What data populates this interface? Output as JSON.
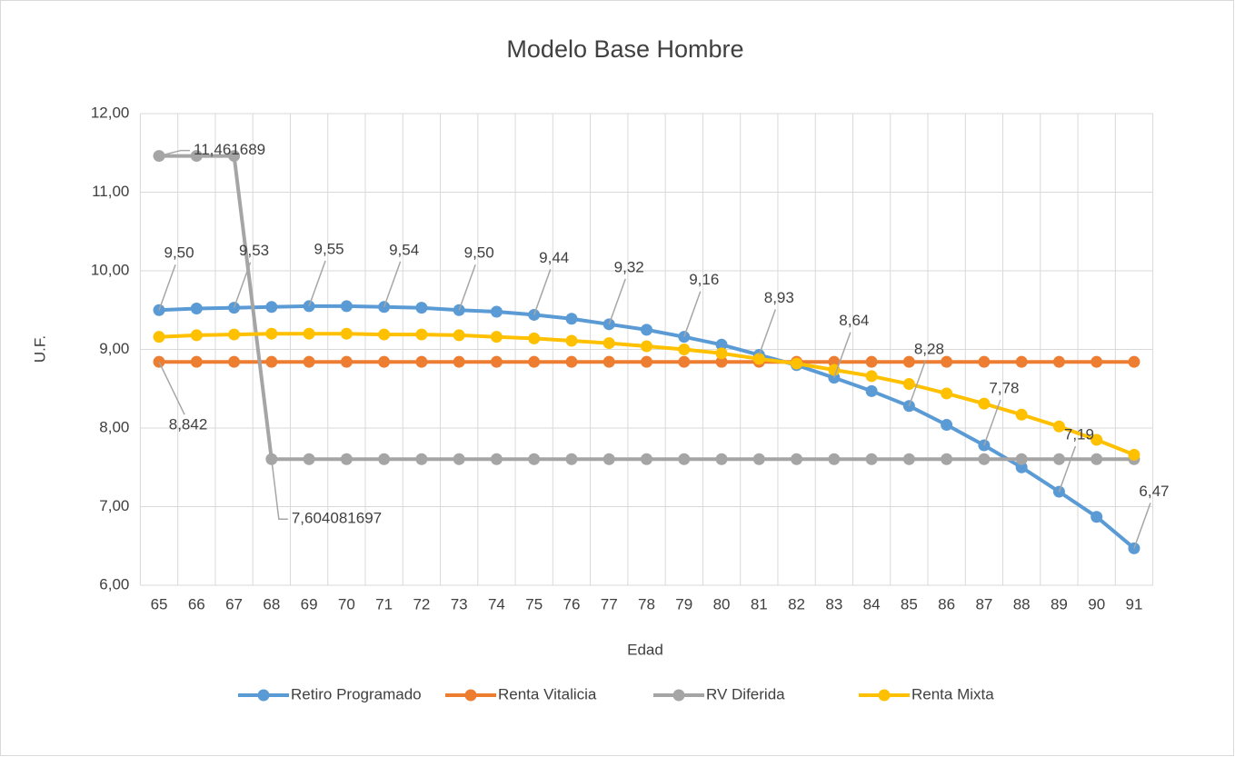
{
  "chart_data": {
    "type": "line",
    "title": "Modelo Base Hombre",
    "x_label": "Edad",
    "y_label": "U.F.",
    "categories": [
      "65",
      "66",
      "67",
      "68",
      "69",
      "70",
      "71",
      "72",
      "73",
      "74",
      "75",
      "76",
      "77",
      "78",
      "79",
      "80",
      "81",
      "82",
      "83",
      "84",
      "85",
      "86",
      "87",
      "88",
      "89",
      "90",
      "91"
    ],
    "ylim": [
      6,
      12
    ],
    "yticks": [
      {
        "value": 6,
        "label": "6,00"
      },
      {
        "value": 7,
        "label": "7,00"
      },
      {
        "value": 8,
        "label": "8,00"
      },
      {
        "value": 9,
        "label": "9,00"
      },
      {
        "value": 10,
        "label": "10,00"
      },
      {
        "value": 11,
        "label": "11,00"
      },
      {
        "value": 12,
        "label": "12,00"
      }
    ],
    "grid": true,
    "legend": "bottom",
    "series": [
      {
        "name": "Retiro Programado",
        "color": "#5b9bd5",
        "values": [
          9.5,
          9.52,
          9.53,
          9.54,
          9.55,
          9.55,
          9.54,
          9.53,
          9.5,
          9.48,
          9.44,
          9.39,
          9.32,
          9.25,
          9.16,
          9.06,
          8.93,
          8.8,
          8.64,
          8.47,
          8.28,
          8.04,
          7.78,
          7.5,
          7.19,
          6.87,
          6.47
        ],
        "value_labels": [
          "9,50",
          null,
          "9,53",
          null,
          "9,55",
          null,
          "9,54",
          null,
          "9,50",
          null,
          "9,44",
          null,
          "9,32",
          null,
          "9,16",
          null,
          "8,93",
          null,
          "8,64",
          null,
          "8,28",
          null,
          "7,78",
          null,
          "7,19",
          null,
          "6,47"
        ]
      },
      {
        "name": "Renta Vitalicia",
        "color": "#ed7d31",
        "values": [
          8.842,
          8.842,
          8.842,
          8.842,
          8.842,
          8.842,
          8.842,
          8.842,
          8.842,
          8.842,
          8.842,
          8.842,
          8.842,
          8.842,
          8.842,
          8.842,
          8.842,
          8.842,
          8.842,
          8.842,
          8.842,
          8.842,
          8.842,
          8.842,
          8.842,
          8.842,
          8.842
        ],
        "value_labels": [
          "8,842",
          null,
          null,
          null,
          null,
          null,
          null,
          null,
          null,
          null,
          null,
          null,
          null,
          null,
          null,
          null,
          null,
          null,
          null,
          null,
          null,
          null,
          null,
          null,
          null,
          null,
          null
        ]
      },
      {
        "name": "RV Diferida",
        "color": "#a5a5a5",
        "values": [
          11.461689,
          11.461689,
          11.461689,
          7.604081697,
          7.604081697,
          7.604081697,
          7.604081697,
          7.604081697,
          7.604081697,
          7.604081697,
          7.604081697,
          7.604081697,
          7.604081697,
          7.604081697,
          7.604081697,
          7.604081697,
          7.604081697,
          7.604081697,
          7.604081697,
          7.604081697,
          7.604081697,
          7.604081697,
          7.604081697,
          7.604081697,
          7.604081697,
          7.604081697,
          7.604081697
        ],
        "value_labels": [
          "11,461689",
          null,
          null,
          "7,604081697",
          null,
          null,
          null,
          null,
          null,
          null,
          null,
          null,
          null,
          null,
          null,
          null,
          null,
          null,
          null,
          null,
          null,
          null,
          null,
          null,
          null,
          null,
          null
        ]
      },
      {
        "name": "Renta Mixta",
        "color": "#ffc000",
        "values": [
          9.16,
          9.18,
          9.19,
          9.2,
          9.2,
          9.2,
          9.19,
          9.19,
          9.18,
          9.16,
          9.14,
          9.11,
          9.08,
          9.04,
          9.0,
          8.95,
          8.88,
          8.82,
          8.74,
          8.66,
          8.56,
          8.44,
          8.31,
          8.17,
          8.02,
          7.85,
          7.66
        ]
      }
    ]
  }
}
